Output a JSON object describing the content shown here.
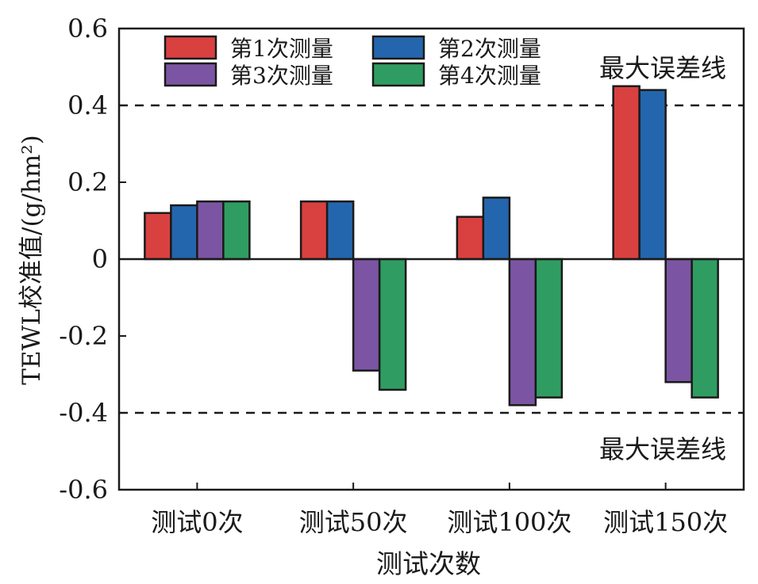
{
  "chart_data": {
    "type": "bar",
    "xlabel": "测试次数",
    "ylabel": "TEWL校准值/(g/hm²)",
    "ylim": [
      -0.6,
      0.6
    ],
    "yticks": [
      "0.6",
      "0.4",
      "0.2",
      "0",
      "-0.2",
      "-0.4",
      "-0.6"
    ],
    "ytick_values": [
      0.6,
      0.4,
      0.2,
      0,
      -0.2,
      -0.4,
      -0.6
    ],
    "categories": [
      "测试0次",
      "测试50次",
      "测试100次",
      "测试150次"
    ],
    "series": [
      {
        "name": "第1次测量",
        "color": "#d94040",
        "values": [
          0.12,
          0.15,
          0.11,
          0.45
        ]
      },
      {
        "name": "第2次测量",
        "color": "#2466ad",
        "values": [
          0.14,
          0.15,
          0.16,
          0.44
        ]
      },
      {
        "name": "第3次测量",
        "color": "#7b55a3",
        "values": [
          0.15,
          -0.29,
          -0.38,
          -0.32
        ]
      },
      {
        "name": "第4次测量",
        "color": "#2f9d62",
        "values": [
          0.15,
          -0.34,
          -0.36,
          -0.36
        ]
      }
    ],
    "reference_lines": [
      {
        "value": 0.4,
        "label": "最大误差线"
      },
      {
        "value": -0.4,
        "label": "最大误差线"
      }
    ],
    "legend_position": "top-left",
    "grid": false
  }
}
